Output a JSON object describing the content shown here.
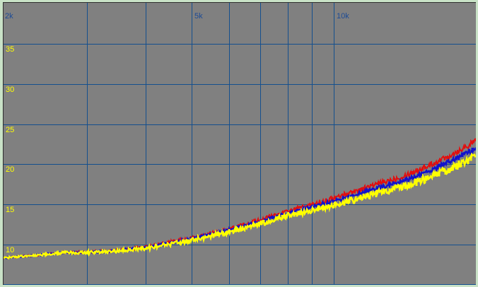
{
  "palette": {
    "surround_green": "#c9e2c7",
    "plot_background": "#808080",
    "grid_color": "#144f8e",
    "x_label_color": "#1b4a96",
    "y_label_color": "#ffff00",
    "inset_shadow": "#2e2e2e"
  },
  "chart_data": {
    "type": "line",
    "title": "",
    "xlabel": "",
    "ylabel": "",
    "x_axis": {
      "scale": "log",
      "min": 2000,
      "max": 20000,
      "gridlines": [
        3000,
        4000,
        5000,
        6000,
        7000,
        8000,
        9000,
        10000
      ],
      "tick_labels": [
        {
          "freq": 2000,
          "label": "2k"
        },
        {
          "freq": 5000,
          "label": "5k"
        },
        {
          "freq": 10000,
          "label": "10k"
        }
      ]
    },
    "y_axis": {
      "min": 5,
      "max": 40.1,
      "gridlines": [
        5,
        10,
        15,
        20,
        25,
        30,
        35
      ],
      "tick_labels": [
        {
          "value": 35,
          "label": "35"
        },
        {
          "value": 30,
          "label": "30"
        },
        {
          "value": 25,
          "label": "25"
        },
        {
          "value": 20,
          "label": "20"
        },
        {
          "value": 15,
          "label": "15"
        },
        {
          "value": 10,
          "label": "10"
        }
      ]
    },
    "grid": true,
    "legend": "none",
    "series": [
      {
        "name": "red-trace",
        "color": "#e11010",
        "stroke_width": 2,
        "noise_amp": [
          0.09,
          0.38
        ],
        "freqs": [
          2000,
          2350,
          2700,
          3000,
          3400,
          4000,
          5000,
          6000,
          7000,
          8000,
          9000,
          10000,
          12000,
          14000,
          16000,
          18000,
          20000
        ],
        "values": [
          8.35,
          8.7,
          9.0,
          9.07,
          9.25,
          9.73,
          10.82,
          11.95,
          13.1,
          14.15,
          15.0,
          15.8,
          17.3,
          18.5,
          19.9,
          21.4,
          22.9
        ]
      },
      {
        "name": "blue-trace",
        "color": "#1212cc",
        "stroke_width": 2.5,
        "noise_amp": [
          0.08,
          0.28
        ],
        "freqs": [
          2000,
          2350,
          2700,
          3000,
          3400,
          4000,
          5000,
          6000,
          7000,
          8000,
          9000,
          10000,
          12000,
          14000,
          16000,
          18000,
          20000
        ],
        "values": [
          8.35,
          8.7,
          9.0,
          9.05,
          9.2,
          9.65,
          10.7,
          11.8,
          12.9,
          13.9,
          14.7,
          15.4,
          16.8,
          17.9,
          19.2,
          20.6,
          22.0
        ]
      },
      {
        "name": "yellow-trace",
        "color": "#ffff00",
        "stroke_width": 2.5,
        "noise_amp": [
          0.1,
          0.55
        ],
        "freqs": [
          2000,
          2350,
          2700,
          3000,
          3400,
          4000,
          5000,
          6000,
          7000,
          8000,
          9000,
          10000,
          12000,
          14000,
          16000,
          18000,
          20000
        ],
        "values": [
          8.35,
          8.7,
          9.0,
          9.03,
          9.15,
          9.55,
          10.55,
          11.6,
          12.65,
          13.6,
          14.3,
          14.9,
          16.2,
          17.2,
          18.4,
          19.7,
          21.0
        ]
      }
    ]
  }
}
